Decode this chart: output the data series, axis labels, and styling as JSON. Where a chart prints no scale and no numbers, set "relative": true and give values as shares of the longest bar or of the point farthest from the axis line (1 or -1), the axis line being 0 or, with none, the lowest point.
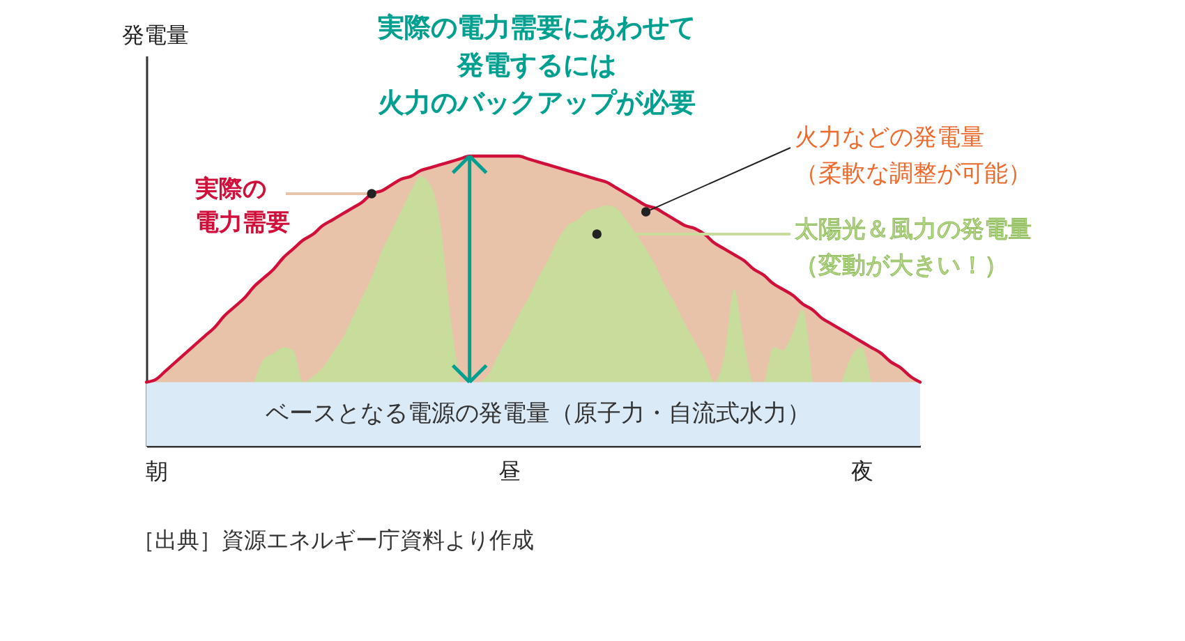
{
  "chart_data": {
    "type": "area",
    "relative": true,
    "ylabel": "発電量",
    "categories": [
      null,
      "朝",
      null,
      null,
      null,
      null,
      null,
      null,
      null,
      null,
      null,
      null,
      null,
      null,
      null,
      null,
      null,
      null,
      null,
      null,
      null,
      null,
      null,
      null,
      null,
      null,
      null,
      null,
      null,
      null,
      null,
      null,
      null,
      null,
      null,
      null,
      null,
      "昼",
      null,
      null,
      null,
      null,
      null,
      null,
      null,
      null,
      null,
      null,
      null,
      null,
      null,
      null,
      null,
      null,
      null,
      null,
      null,
      null,
      null,
      null,
      null,
      null,
      null,
      null,
      null,
      null,
      null,
      null,
      null,
      null,
      null,
      null,
      null,
      "夜",
      null,
      null,
      null,
      null,
      null,
      null
    ],
    "series": [
      {
        "name": "実際の電力需要",
        "color": "#e9c2aa",
        "values": [
          0.22,
          0.23,
          0.26,
          0.29,
          0.32,
          0.35,
          0.38,
          0.41,
          0.45,
          0.48,
          0.51,
          0.55,
          0.58,
          0.61,
          0.65,
          0.68,
          0.71,
          0.73,
          0.76,
          0.78,
          0.8,
          0.82,
          0.84,
          0.87,
          0.88,
          0.9,
          0.92,
          0.93,
          0.95,
          0.96,
          0.97,
          0.98,
          0.99,
          1.0,
          1.0,
          1.0,
          1.0,
          1.0,
          1.0,
          0.99,
          0.98,
          0.97,
          0.96,
          0.95,
          0.94,
          0.93,
          0.92,
          0.91,
          0.89,
          0.87,
          0.85,
          0.83,
          0.82,
          0.8,
          0.78,
          0.76,
          0.75,
          0.73,
          0.7,
          0.68,
          0.66,
          0.64,
          0.61,
          0.59,
          0.56,
          0.54,
          0.52,
          0.49,
          0.47,
          0.44,
          0.42,
          0.4,
          0.38,
          0.36,
          0.34,
          0.32,
          0.29,
          0.27,
          0.24,
          0.22
        ]
      },
      {
        "name": "太陽光＆風力の発電量（変動が大きい！）",
        "color": "#c8dc9c",
        "values": [
          null,
          null,
          null,
          null,
          null,
          null,
          null,
          null,
          null,
          null,
          null,
          0.22,
          0.3,
          0.32,
          0.34,
          0.33,
          0.22,
          0.24,
          0.27,
          0.32,
          0.37,
          0.44,
          0.51,
          0.58,
          0.67,
          0.74,
          0.81,
          0.88,
          0.93,
          0.9,
          0.77,
          0.46,
          0.22,
          null,
          0.22,
          0.25,
          0.32,
          0.38,
          0.45,
          0.51,
          0.58,
          0.64,
          0.71,
          0.76,
          0.78,
          0.81,
          0.82,
          0.83,
          0.82,
          0.78,
          0.73,
          0.68,
          0.62,
          0.55,
          0.49,
          0.42,
          0.36,
          0.3,
          0.22,
          0.31,
          0.54,
          0.36,
          0.22,
          0.22,
          0.34,
          0.33,
          0.39,
          0.47,
          0.22,
          null,
          null,
          0.22,
          0.31,
          0.34,
          0.22,
          null,
          null,
          null,
          null,
          null
        ]
      },
      {
        "name": "ベースとなる電源の発電量（原子力・自流式水力）",
        "color": "#dbeaf7",
        "values": [
          0.22,
          0.22,
          0.22,
          0.22,
          0.22,
          0.22,
          0.22,
          0.22,
          0.22,
          0.22,
          0.22,
          0.22,
          0.22,
          0.22,
          0.22,
          0.22,
          0.22,
          0.22,
          0.22,
          0.22,
          0.22,
          0.22,
          0.22,
          0.22,
          0.22,
          0.22,
          0.22,
          0.22,
          0.22,
          0.22,
          0.22,
          0.22,
          0.22,
          0.22,
          0.22,
          0.22,
          0.22,
          0.22,
          0.22,
          0.22,
          0.22,
          0.22,
          0.22,
          0.22,
          0.22,
          0.22,
          0.22,
          0.22,
          0.22,
          0.22,
          0.22,
          0.22,
          0.22,
          0.22,
          0.22,
          0.22,
          0.22,
          0.22,
          0.22,
          0.22,
          0.22,
          0.22,
          0.22,
          0.22,
          0.22,
          0.22,
          0.22,
          0.22,
          0.22,
          0.22,
          0.22,
          0.22,
          0.22,
          0.22,
          0.22,
          0.22,
          0.22,
          0.22,
          0.22,
          0.22
        ]
      }
    ],
    "annotations": [
      "実際の電力需要にあわせて発電するには火力のバックアップが必要",
      "火力などの発電量（柔軟な調整が可能）",
      "［出典］資源エネルギー庁資料より作成"
    ]
  }
}
